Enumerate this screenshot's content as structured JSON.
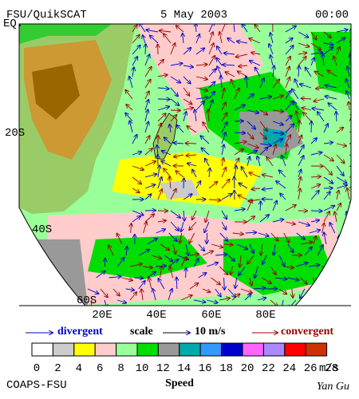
{
  "header": {
    "product": "FSU/QuikSCAT",
    "date": "5 May 2003",
    "time": "00:00"
  },
  "map": {
    "lat_labels": [
      "EQ.",
      "20S",
      "40S",
      "60S"
    ],
    "lon_labels": [
      "20E",
      "40E",
      "60E",
      "80E"
    ]
  },
  "legend": {
    "divergent": "divergent",
    "scale": "scale",
    "scale_value": "10 m/s",
    "convergent": "convergent"
  },
  "colorbar": {
    "ticks": [
      0,
      2,
      4,
      6,
      8,
      10,
      12,
      14,
      16,
      18,
      20,
      22,
      24,
      26,
      28
    ],
    "unit": "m/s"
  },
  "footer": {
    "org": "COAPS-FSU",
    "label": "Speed",
    "author": "Yan Gu"
  }
}
